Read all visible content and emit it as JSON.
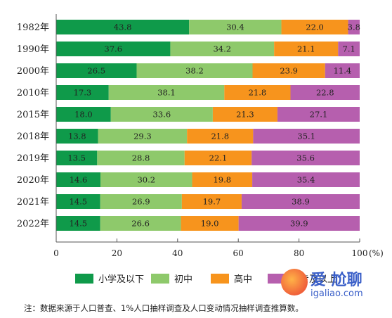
{
  "chart_data": {
    "type": "bar",
    "orientation": "horizontal",
    "stacked": true,
    "categories": [
      "1982年",
      "1990年",
      "2000年",
      "2010年",
      "2015年",
      "2018年",
      "2019年",
      "2020年",
      "2021年",
      "2022年"
    ],
    "series": [
      {
        "name": "小学及以下",
        "color": "#0f9a4a",
        "values": [
          43.8,
          37.6,
          26.5,
          17.3,
          18.0,
          13.8,
          13.5,
          14.6,
          14.5,
          14.5
        ]
      },
      {
        "name": "初中",
        "color": "#8ec96b",
        "values": [
          30.4,
          34.2,
          38.2,
          38.1,
          33.6,
          29.3,
          28.8,
          30.2,
          26.9,
          26.6
        ]
      },
      {
        "name": "高中",
        "color": "#f7941d",
        "values": [
          22.0,
          21.1,
          23.9,
          21.8,
          21.3,
          21.8,
          22.1,
          19.8,
          19.7,
          19.0
        ]
      },
      {
        "name": "大专及以上",
        "color": "#b65fae",
        "values": [
          3.8,
          7.1,
          11.4,
          22.8,
          27.1,
          35.1,
          35.6,
          35.4,
          38.9,
          39.9
        ]
      }
    ],
    "xlim": [
      0,
      100
    ],
    "xticks": [
      0,
      20,
      40,
      60,
      80,
      100
    ],
    "xunit": "(%)",
    "legend_position": "bottom"
  },
  "note": "注：数据来源于人口普查、1%人口抽样调查及人口变动情况抽样调查推算数。",
  "watermark": {
    "line1": "爱 尬聊",
    "line2": "igaliao.com"
  }
}
